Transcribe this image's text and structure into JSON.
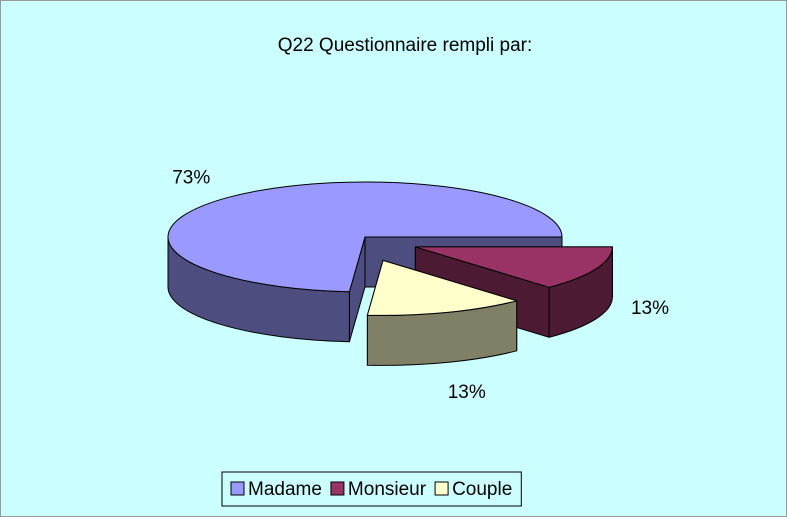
{
  "chart_data": {
    "type": "pie3d",
    "title": "Q22 Questionnaire rempli par:",
    "categories": [
      "Madame",
      "Monsieur",
      "Couple"
    ],
    "values": [
      73,
      13,
      13
    ],
    "value_labels": [
      "73%",
      "13%",
      "13%"
    ],
    "colors": [
      "#9999ff",
      "#993366",
      "#ffffcc"
    ],
    "legend": "bottom"
  }
}
